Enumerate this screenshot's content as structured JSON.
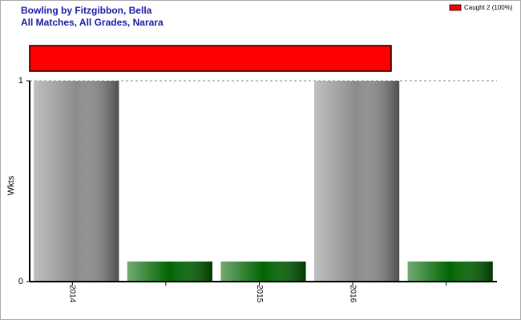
{
  "chart_data": {
    "type": "bar",
    "title": "Bowling by Fitzgibbon, Bella",
    "subtitle": "All Matches, All Grades, Narara",
    "y_label": "Wkts",
    "categories": [
      "2014",
      null,
      "2015",
      "2016",
      null
    ],
    "values": [
      1,
      0.1,
      0.1,
      1,
      0.1
    ],
    "colors": [
      "#8c8c8c",
      "#006400",
      "#006400",
      "#8c8c8c",
      "#006400"
    ],
    "ylim": [
      0,
      1
    ],
    "yticks": [
      0,
      1
    ],
    "grid": true,
    "dismissals": [
      {
        "name": "Caught 2 (100%)",
        "color": "#ff0000",
        "value": 100
      }
    ],
    "legend": "top-right"
  }
}
